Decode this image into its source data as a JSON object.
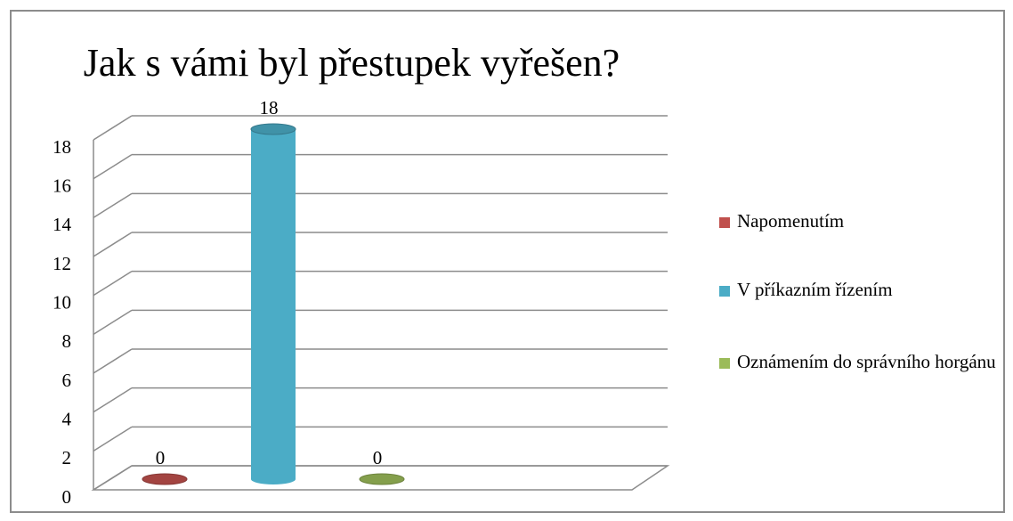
{
  "chart_data": {
    "type": "bar3d",
    "title": "Jak s vámi byl přestupek vyřešen?",
    "categories": [
      null
    ],
    "series": [
      {
        "name": "Napomenutím",
        "color": "#c0504d",
        "values": [
          0
        ]
      },
      {
        "name": "V příkazním řízením",
        "color": "#4bacc6",
        "values": [
          18
        ]
      },
      {
        "name": "Oznámením do správního horgánu",
        "color": "#9bbb59",
        "values": [
          0
        ]
      }
    ],
    "ylim": [
      0,
      18
    ],
    "yticks": [
      0,
      2,
      4,
      6,
      8,
      10,
      12,
      14,
      16,
      18
    ],
    "grid": true,
    "legend": "right"
  }
}
